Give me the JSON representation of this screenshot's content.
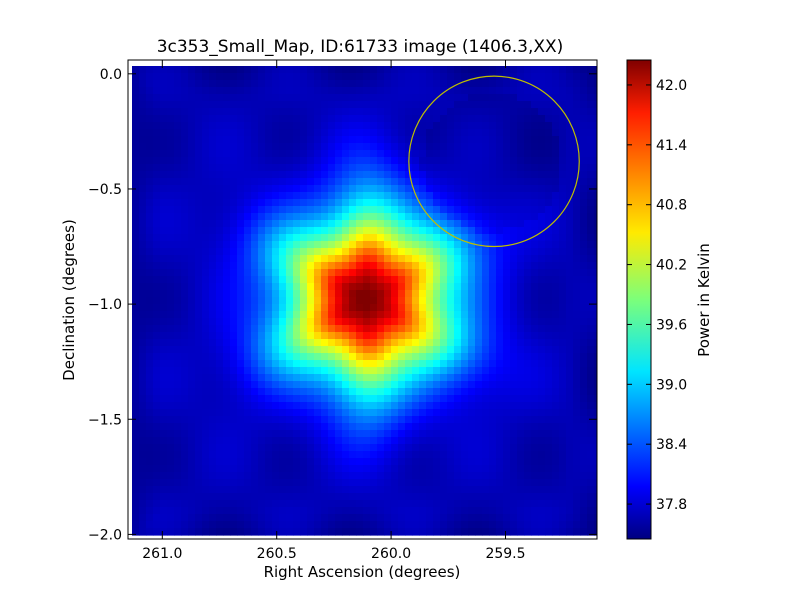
{
  "chart_data": {
    "type": "heatmap",
    "title": "3c353_Small_Map, ID:61733 image (1406.3,XX)",
    "xlabel": "Right Ascension (degrees)",
    "ylabel": "Declination (degrees)",
    "xlim": [
      261.15,
      259.1
    ],
    "ylim": [
      -2.02,
      0.06
    ],
    "x_ticks": [
      261.0,
      260.5,
      260.0,
      259.5
    ],
    "x_tick_labels": [
      "261.0",
      "260.5",
      "260.0",
      "259.5"
    ],
    "y_ticks": [
      0.0,
      -0.5,
      -1.0,
      -1.5,
      -2.0
    ],
    "y_tick_labels": [
      "0.0",
      "−0.5",
      "−1.0",
      "−1.5",
      "−2.0"
    ],
    "colormap": "jet",
    "colorbar": {
      "label": "Power in Kelvin",
      "range": [
        37.45,
        42.25
      ],
      "ticks": [
        42.0,
        41.4,
        40.8,
        40.2,
        39.6,
        39.0,
        38.4,
        37.8
      ],
      "tick_labels": [
        "42.0",
        "41.4",
        "40.8",
        "40.2",
        "39.6",
        "39.0",
        "38.4",
        "37.8"
      ]
    },
    "background_level": 37.7,
    "source": {
      "peak": 42.2,
      "ra": 260.1,
      "dec": -0.98
    },
    "annotation": {
      "shape": "circle",
      "color": "#bfbf00",
      "center_ra": 259.55,
      "center_dec": -0.38,
      "radius_deg": 0.37
    },
    "grid": false
  }
}
